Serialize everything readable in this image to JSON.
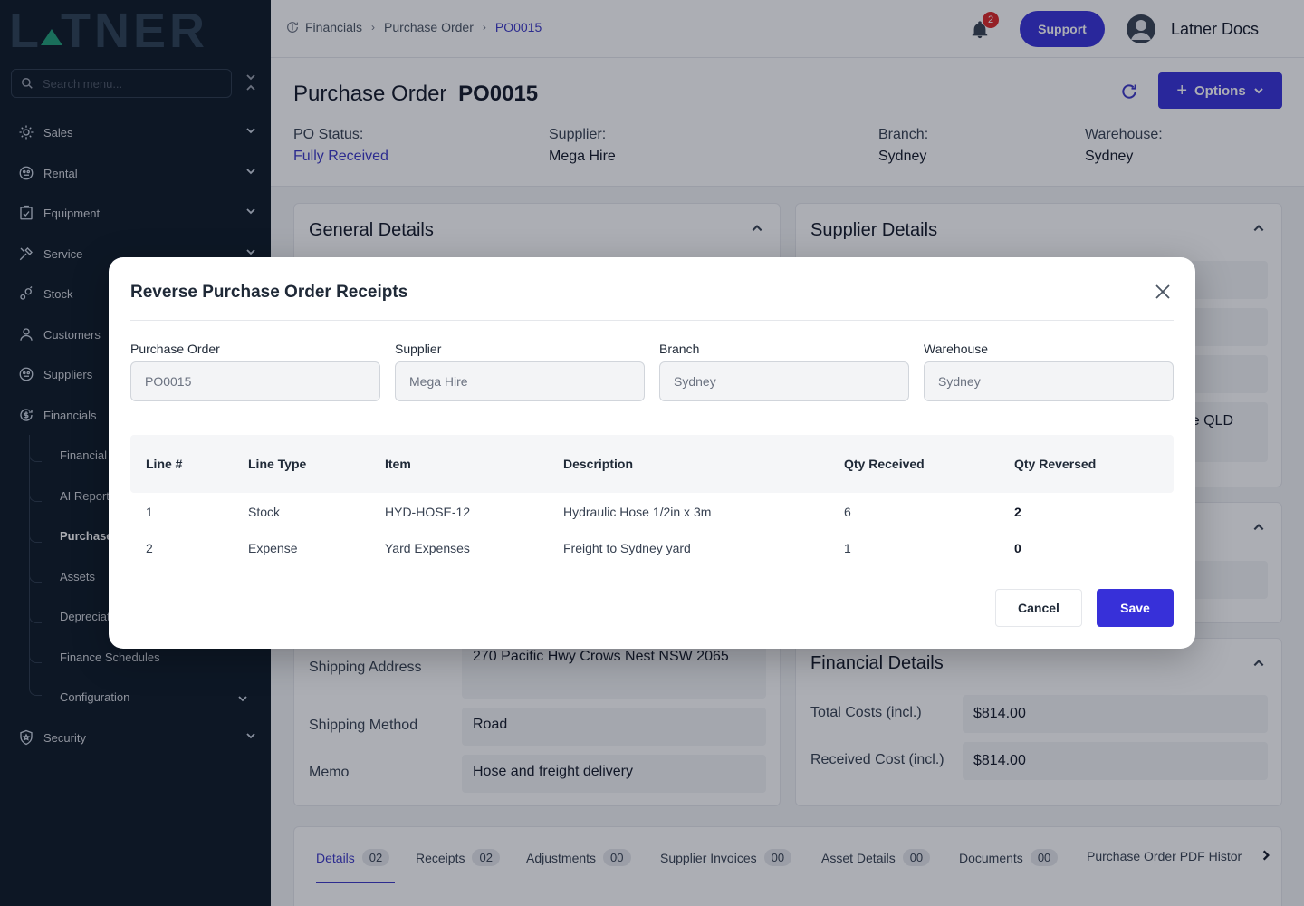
{
  "brand": {
    "logo_left": "L",
    "logo_right": "TNER"
  },
  "sidebar": {
    "search_placeholder": "Search menu...",
    "items": [
      {
        "label": "Sales",
        "icon": "sales-icon"
      },
      {
        "label": "Rental",
        "icon": "rental-icon"
      },
      {
        "label": "Equipment",
        "icon": "equipment-icon"
      },
      {
        "label": "Service",
        "icon": "service-icon"
      },
      {
        "label": "Stock",
        "icon": "stock-icon"
      },
      {
        "label": "Customers",
        "icon": "customers-icon"
      },
      {
        "label": "Suppliers",
        "icon": "suppliers-icon"
      },
      {
        "label": "Financials",
        "icon": "financials-icon"
      },
      {
        "label": "Security",
        "icon": "security-icon"
      }
    ],
    "financials_sub": [
      "Financial",
      "AI Report",
      "Purchase",
      "Assets",
      "Depreciat",
      "Finance Schedules",
      "Configuration"
    ]
  },
  "header": {
    "breadcrumb": [
      "Financials",
      "Purchase Order",
      "PO0015"
    ],
    "notification_count": "2",
    "support_label": "Support",
    "user_name": "Latner Docs"
  },
  "page": {
    "title_prefix": "Purchase Order",
    "title_id": "PO0015",
    "options_label": "Options",
    "meta": [
      {
        "label": "PO Status:",
        "value": "Fully Received"
      },
      {
        "label": "Supplier:",
        "value": "Mega Hire"
      },
      {
        "label": "Branch:",
        "value": "Sydney"
      },
      {
        "label": "Warehouse:",
        "value": "Sydney"
      }
    ]
  },
  "cards": {
    "general_title": "General Details",
    "supplier_title": "Supplier Details",
    "supplier_partial": "e QLD",
    "shipping_address_label": "Shipping Address",
    "shipping_address_value": "270 Pacific Hwy Crows Nest NSW 2065",
    "shipping_method_label": "Shipping Method",
    "shipping_method_value": "Road",
    "memo_label": "Memo",
    "memo_value": "Hose and freight delivery",
    "financial_title": "Financial Details",
    "total_costs_label": "Total Costs (incl.)",
    "total_costs_value": "$814.00",
    "received_cost_label": "Received Cost (incl.)",
    "received_cost_value": "$814.00"
  },
  "tabs": [
    {
      "label": "Details",
      "count": "02"
    },
    {
      "label": "Receipts",
      "count": "02"
    },
    {
      "label": "Adjustments",
      "count": "00"
    },
    {
      "label": "Supplier Invoices",
      "count": "00"
    },
    {
      "label": "Asset Details",
      "count": "00"
    },
    {
      "label": "Documents",
      "count": "00"
    },
    {
      "label": "Purchase Order PDF Histor",
      "count": ""
    }
  ],
  "modal": {
    "title": "Reverse Purchase Order Receipts",
    "fields": [
      {
        "label": "Purchase Order",
        "value": "PO0015"
      },
      {
        "label": "Supplier",
        "value": "Mega Hire"
      },
      {
        "label": "Branch",
        "value": "Sydney"
      },
      {
        "label": "Warehouse",
        "value": "Sydney"
      }
    ],
    "columns": [
      "Line #",
      "Line Type",
      "Item",
      "Description",
      "Qty Received",
      "Qty Reversed"
    ],
    "rows": [
      {
        "line": "1",
        "type": "Stock",
        "item": "HYD-HOSE-12",
        "description": "Hydraulic Hose 1/2in x 3m",
        "qty_received": "6",
        "qty_reversed": "2"
      },
      {
        "line": "2",
        "type": "Expense",
        "item": "Yard Expenses",
        "description": "Freight to Sydney yard",
        "qty_received": "1",
        "qty_reversed": "0"
      }
    ],
    "cancel_label": "Cancel",
    "save_label": "Save"
  },
  "colors": {
    "accent": "#3730d9",
    "sidebar_bg": "#0b1724",
    "status": "#3b37c6"
  }
}
